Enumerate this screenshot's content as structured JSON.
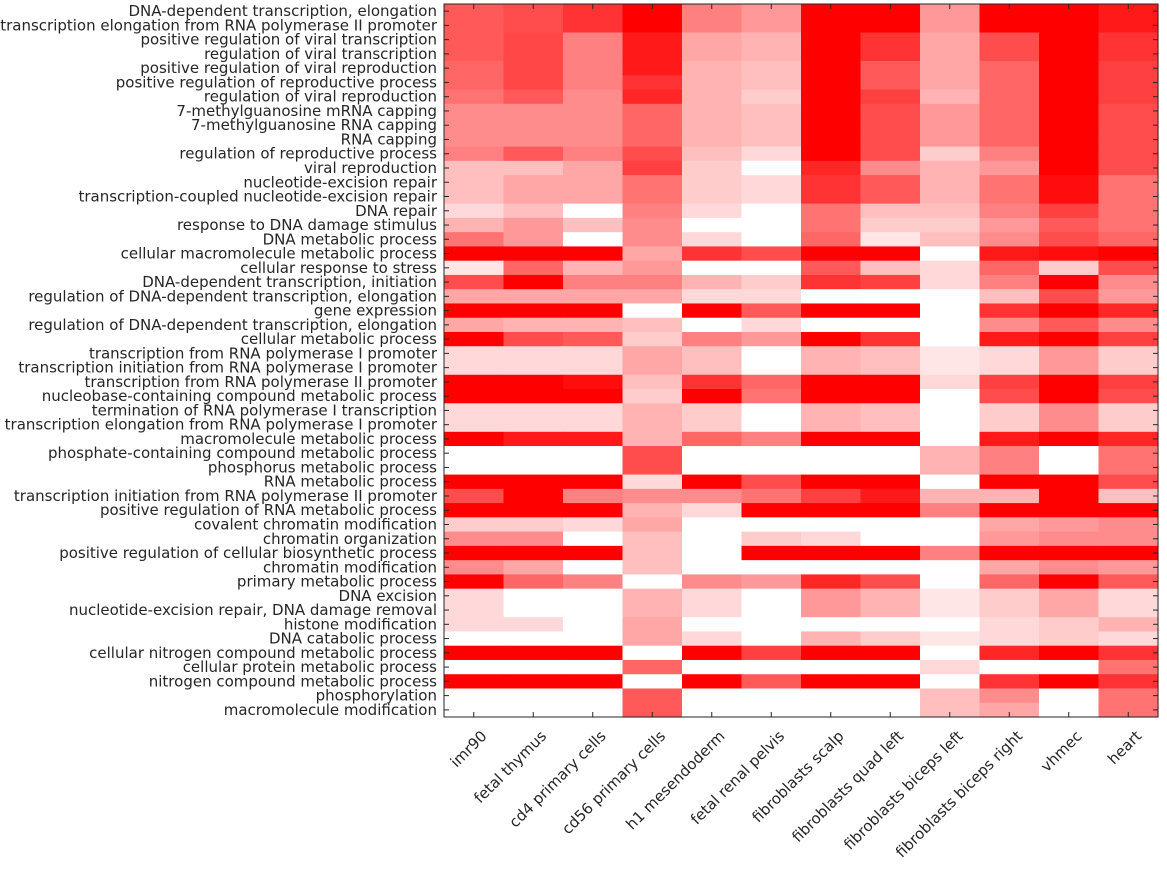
{
  "chart_data": {
    "type": "heatmap",
    "colormap": {
      "low": "#ffffff",
      "high": "#ff0000"
    },
    "value_range": [
      0,
      1
    ],
    "columns": [
      "imr90",
      "fetal thymus",
      "cd4 primary cells",
      "cd56 primary cells",
      "h1 mesendoderm",
      "fetal renal pelvis",
      "fibroblasts scalp",
      "fibroblasts quad left",
      "fibroblasts biceps left",
      "fibroblasts biceps right",
      "vhmec",
      "heart"
    ],
    "rows": [
      "DNA-dependent transcription, elongation",
      "transcription elongation from RNA polymerase II promoter",
      "positive regulation of viral transcription",
      "regulation of viral transcription",
      "positive regulation of viral reproduction",
      "positive regulation of reproductive process",
      "regulation of viral reproduction",
      "7-methylguanosine mRNA capping",
      "7-methylguanosine RNA capping",
      "RNA capping",
      "regulation of reproductive process",
      "viral reproduction",
      "nucleotide-excision repair",
      "transcription-coupled nucleotide-excision repair",
      "DNA repair",
      "response to DNA damage stimulus",
      "DNA metabolic process",
      "cellular macromolecule metabolic process",
      "cellular response to stress",
      "DNA-dependent transcription, initiation",
      "regulation of DNA-dependent transcription, elongation",
      "gene expression",
      "regulation of DNA-dependent transcription, elongation",
      "cellular metabolic process",
      "transcription from RNA polymerase I promoter",
      "transcription initiation from RNA polymerase I promoter",
      "transcription from RNA polymerase II promoter",
      "nucleobase-containing compound metabolic process",
      "termination of RNA polymerase I transcription",
      "transcription elongation from RNA polymerase I promoter",
      "macromolecule metabolic process",
      "phosphate-containing compound metabolic process",
      "phosphorus metabolic process",
      "RNA metabolic process",
      "transcription initiation from RNA polymerase II promoter",
      "positive regulation of RNA metabolic process",
      "covalent chromatin modification",
      "chromatin organization",
      "positive regulation of cellular biosynthetic process",
      "chromatin modification",
      "primary metabolic process",
      "DNA excision",
      "nucleotide-excision repair, DNA damage removal",
      "histone modification",
      "DNA catabolic process",
      "cellular nitrogen compound metabolic process",
      "cellular protein metabolic process",
      "nitrogen compound metabolic process",
      "phosphorylation",
      "macromolecule modification"
    ],
    "values": [
      [
        0.65,
        0.7,
        0.8,
        1.0,
        0.5,
        0.4,
        1.0,
        1.0,
        0.4,
        1.0,
        1.0,
        0.9
      ],
      [
        0.65,
        0.7,
        0.8,
        1.0,
        0.5,
        0.4,
        1.0,
        1.0,
        0.4,
        1.0,
        1.0,
        0.9
      ],
      [
        0.65,
        0.72,
        0.5,
        0.9,
        0.35,
        0.3,
        1.0,
        0.8,
        0.35,
        0.7,
        1.0,
        0.8
      ],
      [
        0.65,
        0.72,
        0.5,
        0.9,
        0.35,
        0.3,
        1.0,
        0.8,
        0.35,
        0.7,
        1.0,
        0.8
      ],
      [
        0.6,
        0.72,
        0.5,
        0.9,
        0.3,
        0.25,
        1.0,
        0.65,
        0.35,
        0.6,
        1.0,
        0.75
      ],
      [
        0.6,
        0.72,
        0.5,
        0.8,
        0.3,
        0.25,
        1.0,
        0.65,
        0.35,
        0.6,
        1.0,
        0.75
      ],
      [
        0.55,
        0.65,
        0.45,
        0.85,
        0.3,
        0.2,
        1.0,
        0.75,
        0.3,
        0.6,
        1.0,
        0.75
      ],
      [
        0.45,
        0.45,
        0.45,
        0.6,
        0.3,
        0.25,
        1.0,
        0.7,
        0.4,
        0.6,
        1.0,
        0.7
      ],
      [
        0.45,
        0.45,
        0.45,
        0.6,
        0.3,
        0.25,
        1.0,
        0.7,
        0.4,
        0.6,
        1.0,
        0.7
      ],
      [
        0.45,
        0.45,
        0.45,
        0.6,
        0.3,
        0.25,
        1.0,
        0.7,
        0.4,
        0.6,
        1.0,
        0.7
      ],
      [
        0.5,
        0.65,
        0.5,
        0.7,
        0.25,
        0.15,
        1.0,
        0.7,
        0.2,
        0.5,
        1.0,
        0.7
      ],
      [
        0.25,
        0.25,
        0.35,
        0.75,
        0.2,
        0.0,
        0.85,
        0.45,
        0.3,
        0.4,
        1.0,
        0.7
      ],
      [
        0.25,
        0.35,
        0.35,
        0.55,
        0.2,
        0.15,
        0.8,
        0.65,
        0.3,
        0.55,
        0.95,
        0.55
      ],
      [
        0.25,
        0.35,
        0.35,
        0.55,
        0.2,
        0.15,
        0.8,
        0.65,
        0.3,
        0.55,
        0.95,
        0.55
      ],
      [
        0.15,
        0.25,
        0.0,
        0.5,
        0.15,
        0.0,
        0.55,
        0.25,
        0.25,
        0.5,
        0.75,
        0.55
      ],
      [
        0.3,
        0.4,
        0.25,
        0.45,
        0.0,
        0.0,
        0.55,
        0.2,
        0.2,
        0.4,
        0.65,
        0.55
      ],
      [
        0.55,
        0.4,
        0.0,
        0.45,
        0.15,
        0.0,
        0.6,
        0.1,
        0.25,
        0.45,
        0.7,
        0.6
      ],
      [
        1.0,
        1.0,
        1.0,
        0.35,
        0.8,
        0.7,
        1.0,
        1.0,
        0.0,
        0.9,
        0.95,
        1.0
      ],
      [
        0.1,
        0.6,
        0.3,
        0.4,
        0.0,
        0.0,
        0.65,
        0.25,
        0.15,
        0.6,
        0.2,
        0.7
      ],
      [
        0.7,
        1.0,
        0.5,
        0.5,
        0.3,
        0.2,
        0.8,
        0.75,
        0.15,
        0.5,
        1.0,
        0.45
      ],
      [
        0.35,
        0.35,
        0.35,
        0.35,
        0.15,
        0.15,
        0.0,
        0.0,
        0.0,
        0.25,
        0.7,
        0.4
      ],
      [
        1.0,
        1.0,
        1.0,
        0.0,
        1.0,
        0.65,
        1.0,
        1.0,
        0.0,
        0.8,
        1.0,
        0.85
      ],
      [
        0.35,
        0.3,
        0.3,
        0.25,
        0.0,
        0.15,
        0.0,
        0.0,
        0.0,
        0.45,
        0.65,
        0.45
      ],
      [
        1.0,
        0.7,
        0.65,
        0.2,
        0.5,
        0.4,
        1.0,
        0.8,
        0.0,
        0.9,
        1.0,
        0.75
      ],
      [
        0.15,
        0.15,
        0.15,
        0.35,
        0.25,
        0.0,
        0.3,
        0.25,
        0.1,
        0.15,
        0.4,
        0.2
      ],
      [
        0.15,
        0.15,
        0.15,
        0.35,
        0.25,
        0.0,
        0.3,
        0.25,
        0.1,
        0.15,
        0.4,
        0.2
      ],
      [
        1.0,
        1.0,
        0.95,
        0.25,
        0.8,
        0.6,
        1.0,
        1.0,
        0.15,
        0.75,
        1.0,
        0.75
      ],
      [
        1.0,
        1.0,
        1.0,
        0.2,
        1.0,
        0.55,
        1.0,
        1.0,
        0.0,
        0.7,
        1.0,
        0.7
      ],
      [
        0.15,
        0.15,
        0.15,
        0.3,
        0.2,
        0.0,
        0.3,
        0.25,
        0.0,
        0.2,
        0.45,
        0.2
      ],
      [
        0.15,
        0.15,
        0.15,
        0.3,
        0.2,
        0.0,
        0.3,
        0.25,
        0.0,
        0.2,
        0.45,
        0.2
      ],
      [
        1.0,
        0.9,
        0.9,
        0.3,
        0.6,
        0.5,
        1.0,
        1.0,
        0.0,
        0.9,
        1.0,
        0.85
      ],
      [
        0.0,
        0.0,
        0.0,
        0.7,
        0.0,
        0.0,
        0.0,
        0.0,
        0.3,
        0.5,
        0.0,
        0.55
      ],
      [
        0.0,
        0.0,
        0.0,
        0.7,
        0.0,
        0.0,
        0.0,
        0.0,
        0.3,
        0.5,
        0.0,
        0.55
      ],
      [
        1.0,
        1.0,
        1.0,
        0.15,
        1.0,
        0.7,
        1.0,
        1.0,
        0.0,
        1.0,
        1.0,
        0.7
      ],
      [
        0.7,
        1.0,
        0.5,
        0.45,
        0.45,
        0.55,
        0.75,
        0.9,
        0.3,
        0.3,
        1.0,
        0.25
      ],
      [
        1.0,
        1.0,
        1.0,
        0.3,
        0.15,
        1.0,
        1.0,
        1.0,
        0.5,
        1.0,
        1.0,
        1.0
      ],
      [
        0.2,
        0.2,
        0.15,
        0.35,
        0.0,
        0.0,
        0.0,
        0.0,
        0.0,
        0.35,
        0.4,
        0.45
      ],
      [
        0.45,
        0.45,
        0.0,
        0.25,
        0.0,
        0.2,
        0.15,
        0.0,
        0.0,
        0.4,
        0.45,
        0.45
      ],
      [
        1.0,
        1.0,
        1.0,
        0.25,
        0.0,
        1.0,
        1.0,
        1.0,
        0.5,
        1.0,
        1.0,
        1.0
      ],
      [
        0.45,
        0.35,
        0.0,
        0.25,
        0.0,
        0.0,
        0.0,
        0.0,
        0.0,
        0.35,
        0.45,
        0.4
      ],
      [
        1.0,
        0.6,
        0.5,
        0.0,
        0.45,
        0.4,
        0.85,
        0.7,
        0.0,
        0.6,
        1.0,
        0.65
      ],
      [
        0.15,
        0.0,
        0.0,
        0.3,
        0.15,
        0.0,
        0.4,
        0.3,
        0.1,
        0.2,
        0.35,
        0.15
      ],
      [
        0.15,
        0.0,
        0.0,
        0.3,
        0.15,
        0.0,
        0.4,
        0.3,
        0.1,
        0.2,
        0.35,
        0.15
      ],
      [
        0.15,
        0.15,
        0.0,
        0.35,
        0.0,
        0.0,
        0.0,
        0.0,
        0.0,
        0.15,
        0.2,
        0.3
      ],
      [
        0.0,
        0.0,
        0.0,
        0.35,
        0.15,
        0.0,
        0.3,
        0.2,
        0.1,
        0.15,
        0.2,
        0.15
      ],
      [
        1.0,
        1.0,
        1.0,
        0.0,
        1.0,
        0.75,
        1.0,
        1.0,
        0.0,
        0.85,
        1.0,
        0.8
      ],
      [
        0.0,
        0.0,
        0.0,
        0.6,
        0.0,
        0.0,
        0.0,
        0.0,
        0.15,
        0.0,
        0.0,
        0.55
      ],
      [
        1.0,
        1.0,
        1.0,
        0.0,
        1.0,
        0.65,
        1.0,
        1.0,
        0.0,
        0.8,
        1.0,
        0.8
      ],
      [
        0.0,
        0.0,
        0.0,
        0.65,
        0.0,
        0.0,
        0.0,
        0.0,
        0.25,
        0.45,
        0.0,
        0.55
      ],
      [
        0.0,
        0.0,
        0.0,
        0.65,
        0.0,
        0.0,
        0.0,
        0.0,
        0.25,
        0.35,
        0.0,
        0.55
      ]
    ]
  }
}
